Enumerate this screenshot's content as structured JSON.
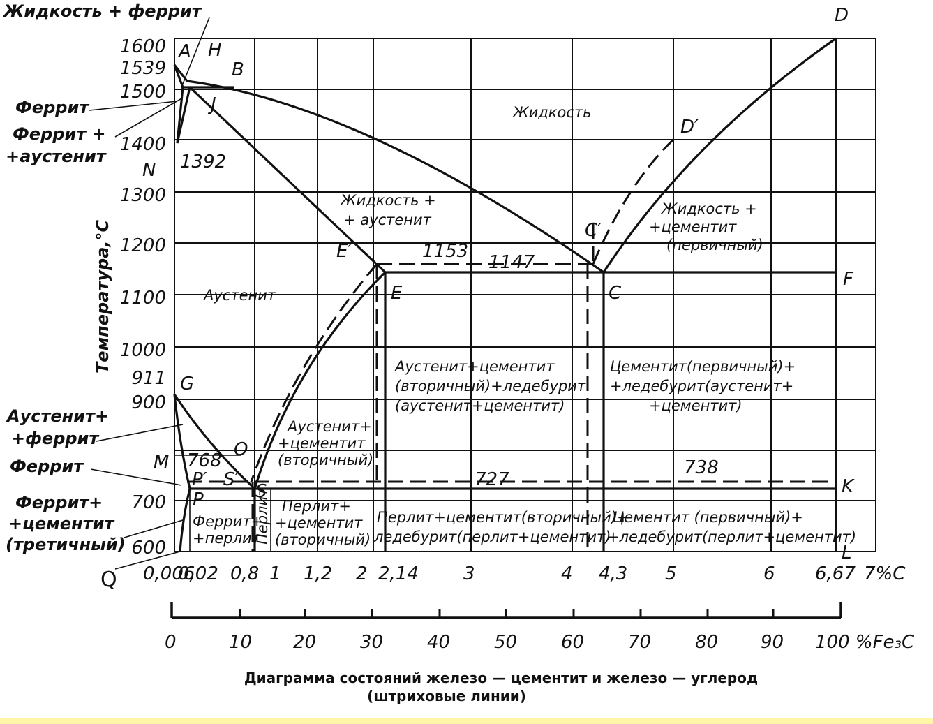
{
  "axis": {
    "y_label": "Температура,°С",
    "y_ticks": [
      "1600",
      "1500",
      "1400",
      "1300",
      "1200",
      "1100",
      "1000",
      "900",
      "700",
      "600"
    ],
    "extra_temps": [
      "1539",
      "1392",
      "911",
      "768",
      "1153",
      "1147",
      "727",
      "738"
    ],
    "c_ticks": [
      "0,006",
      "0,02",
      "0,8",
      "1",
      "1,2",
      "2",
      "2,14",
      "3",
      "4",
      "4,3",
      "5",
      "6",
      "6,67",
      "7%C"
    ],
    "fe3c_ticks": [
      "0",
      "10",
      "20",
      "30",
      "40",
      "50",
      "60",
      "70",
      "80",
      "90",
      "100 %Fe₃C"
    ]
  },
  "points": [
    "A",
    "H",
    "B",
    "J",
    "N",
    "E′",
    "E",
    "C′",
    "C",
    "F",
    "D",
    "D′",
    "G",
    "O",
    "M",
    "P′",
    "S′",
    "S",
    "P",
    "K",
    "L",
    "Q"
  ],
  "regions": {
    "liquid_ferrite": "Жидкость + феррит",
    "ferrite": "Феррит",
    "ferrite_austenite_1": "Феррит +",
    "ferrite_austenite_2": "+аустенит",
    "liquid": "Жидкость",
    "liquid_austenite_1": "Жидкость +",
    "liquid_austenite_2": "+ аустенит",
    "liquid_cementite_1": "Жидкость +",
    "liquid_cementite_2": "+цементит",
    "liquid_cementite_3": "(первичный)",
    "austenite": "Аустенит",
    "aus_cem_led_1": "Аустенит+цементит",
    "aus_cem_led_2": "(вторичный)+ледебурит",
    "aus_cem_led_3": "(аустенит+цементит)",
    "cem_led_aus_1": "Цементит(первичный)+",
    "cem_led_aus_2": "+ледебурит(аустенит+",
    "cem_led_aus_3": "+цементит)",
    "austenite_ferrite_1": "Аустенит+",
    "austenite_ferrite_2": "+феррит",
    "ferrite2": "Феррит",
    "aus_cem2_1": "Аустенит+",
    "aus_cem2_2": "+цементит",
    "aus_cem2_3": "(вторичный)",
    "fer_cem3_1": "Феррит+",
    "fer_cem3_2": "+цементит",
    "fer_cem3_3": "(третичный)",
    "fer_perl_1": "Феррит+",
    "fer_perl_2": "+перлит",
    "perlite": "Перлит",
    "perl_cem2_1": "Перлит+",
    "perl_cem2_2": "+цементит",
    "perl_cem2_3": "(вторичный)",
    "perl_cem_led_1": "Перлит+цементит(вторичный)+",
    "perl_cem_led_2": "ледебурит(перлит+цементит)",
    "cem_led_perl_1": "Цементит (первичный)+",
    "cem_led_perl_2": "+ледебурит(перлит+цементит)"
  },
  "caption": {
    "line1": "Диаграмма состояний железо — цементит и железо — углерод",
    "line2": "(штриховые линии)"
  }
}
